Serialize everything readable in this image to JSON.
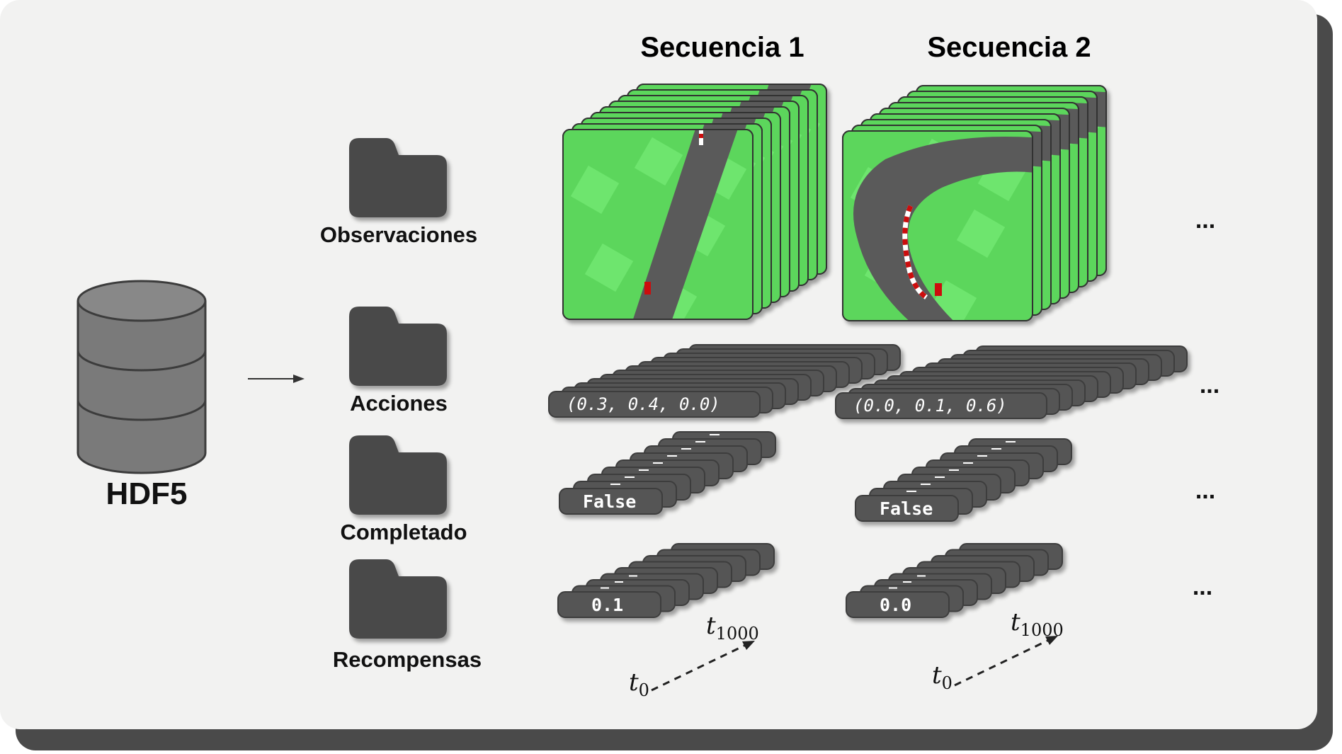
{
  "database": {
    "label": "HDF5"
  },
  "groups": [
    {
      "label": "Observaciones"
    },
    {
      "label": "Acciones"
    },
    {
      "label": "Completado"
    },
    {
      "label": "Recompensas"
    }
  ],
  "sequences": [
    {
      "title": "Secuencia 1",
      "action": "(0.3, 0.4, 0.0)",
      "done": "False",
      "reward": "0.1"
    },
    {
      "title": "Secuencia 2",
      "action": "(0.0, 0.1, 0.6)",
      "done": "False",
      "reward": "0.0"
    }
  ],
  "time": {
    "start_symbol": "t",
    "start_sub": "0",
    "end_symbol": "t",
    "end_sub": "1000"
  },
  "ellipsis": "...",
  "colors": {
    "background": "#f2f2f1",
    "card": "#555555",
    "grass": "#5bd65b",
    "road": "#5a5a5a",
    "track_edge": "#cc1111"
  }
}
